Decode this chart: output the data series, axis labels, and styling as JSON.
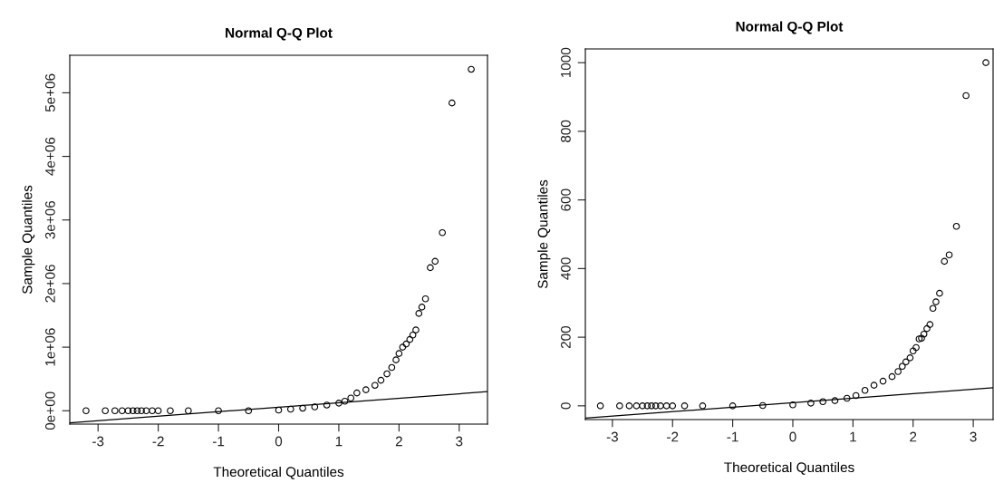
{
  "chart_data": [
    {
      "type": "scatter",
      "title": "Normal Q-Q Plot",
      "xlabel": "Theoretical Quantiles",
      "ylabel": "Sample Quantiles",
      "xlim": [
        -3.47,
        3.47
      ],
      "ylim": [
        -210000,
        5590000
      ],
      "xticks": [
        -3,
        -2,
        -1,
        0,
        1,
        2,
        3
      ],
      "yticks": [
        {
          "value": 0,
          "label": "0e+00"
        },
        {
          "value": 1000000,
          "label": "1e+06"
        },
        {
          "value": 2000000,
          "label": "2e+06"
        },
        {
          "value": 3000000,
          "label": "3e+06"
        },
        {
          "value": 4000000,
          "label": "4e+06"
        },
        {
          "value": 5000000,
          "label": "5e+06"
        }
      ],
      "marker": "circle",
      "grid": false,
      "legend": false,
      "series": [
        {
          "color": "#000000",
          "x": [
            -3.2,
            -2.88,
            -2.72,
            -2.6,
            -2.5,
            -2.42,
            -2.35,
            -2.28,
            -2.2,
            -2.1,
            -2.0,
            -1.8,
            -1.5,
            -1.0,
            -0.5,
            0,
            0.2,
            0.4,
            0.6,
            0.8,
            1.0,
            1.1,
            1.2,
            1.3,
            1.45,
            1.6,
            1.7,
            1.8,
            1.88,
            1.95,
            2.0,
            2.06,
            2.12,
            2.18,
            2.23,
            2.28,
            2.33,
            2.38,
            2.44,
            2.52,
            2.6,
            2.72,
            2.88,
            3.2
          ],
          "values": [
            0,
            0,
            0,
            0,
            0,
            0,
            0,
            0,
            0,
            0,
            0,
            0,
            0,
            0,
            0,
            10000,
            25000,
            40000,
            60000,
            90000,
            120000,
            150000,
            200000,
            280000,
            330000,
            400000,
            480000,
            580000,
            680000,
            800000,
            900000,
            1000000,
            1050000,
            1120000,
            1190000,
            1270000,
            1530000,
            1630000,
            1760000,
            2250000,
            2350000,
            2800000,
            4840000,
            5370000
          ]
        },
        {
          "type": "line",
          "color": "#000000",
          "marker": "none",
          "x": [
            -3.47,
            3.47
          ],
          "values": [
            -190000,
            300000
          ]
        }
      ]
    },
    {
      "type": "scatter",
      "title": "Normal Q-Q Plot",
      "xlabel": "Theoretical Quantiles",
      "ylabel": "Sample Quantiles",
      "xlim": [
        -3.45,
        3.33
      ],
      "ylim": [
        -40,
        1040
      ],
      "xticks": [
        -3,
        -2,
        -1,
        0,
        1,
        2,
        3
      ],
      "yticks": [
        0,
        200,
        400,
        600,
        800,
        1000
      ],
      "marker": "circle",
      "grid": false,
      "legend": false,
      "series": [
        {
          "color": "#000000",
          "x": [
            -3.2,
            -2.88,
            -2.72,
            -2.6,
            -2.5,
            -2.42,
            -2.35,
            -2.28,
            -2.2,
            -2.1,
            -2.0,
            -1.8,
            -1.5,
            -1.0,
            -0.5,
            0,
            0.3,
            0.5,
            0.7,
            0.9,
            1.05,
            1.2,
            1.35,
            1.5,
            1.65,
            1.75,
            1.82,
            1.88,
            1.95,
            2.0,
            2.05,
            2.1,
            2.14,
            2.18,
            2.23,
            2.28,
            2.33,
            2.38,
            2.44,
            2.52,
            2.6,
            2.72,
            2.88,
            3.21
          ],
          "values": [
            0,
            0,
            0,
            0,
            0,
            0,
            0,
            0,
            0,
            0,
            0,
            0,
            0,
            0,
            1,
            3,
            8,
            12,
            15,
            22,
            30,
            45,
            60,
            72,
            85,
            100,
            115,
            128,
            140,
            160,
            170,
            195,
            197,
            209,
            225,
            237,
            284,
            303,
            328,
            421,
            440,
            523,
            904,
            1000
          ]
        },
        {
          "type": "line",
          "color": "#000000",
          "marker": "none",
          "x": [
            -3.45,
            3.33
          ],
          "values": [
            -36,
            53
          ]
        }
      ]
    }
  ]
}
